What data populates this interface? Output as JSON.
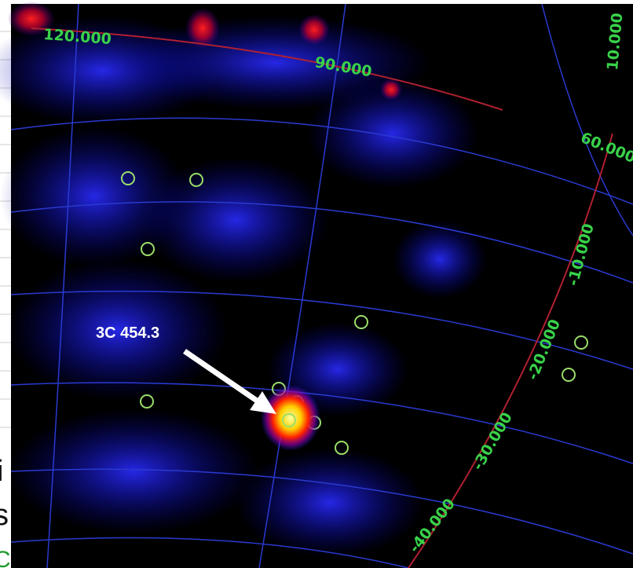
{
  "grid_labels": {
    "longitude": [
      "120.000",
      "90.000",
      "60.000"
    ],
    "latitude": [
      "10.000",
      "-10.000",
      "-20.000",
      "-30.000",
      "-40.000"
    ]
  },
  "source_label": "3C 454.3",
  "fragments": [
    "i",
    "s",
    "C"
  ]
}
